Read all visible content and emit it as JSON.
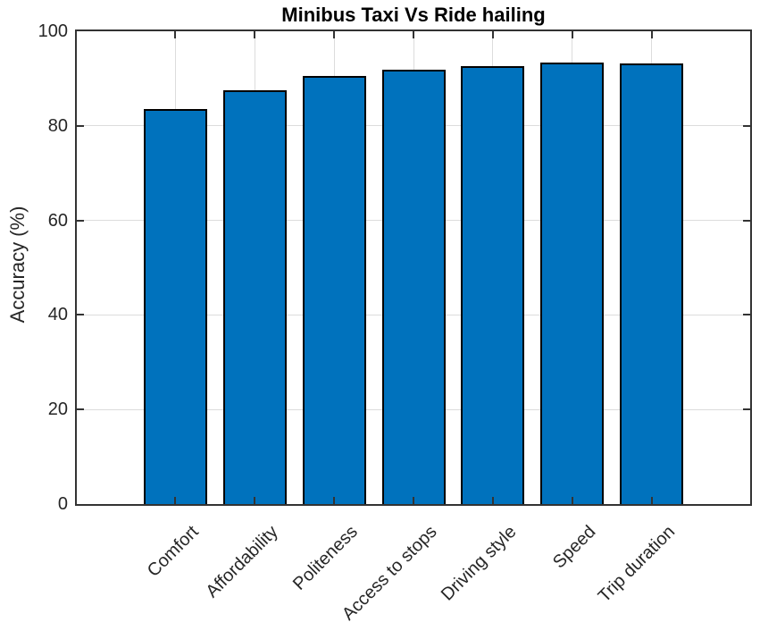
{
  "chart_data": {
    "type": "bar",
    "title": "Minibus Taxi Vs Ride hailing",
    "ylabel": "Accuracy (%)",
    "xlabel": "",
    "categories": [
      "Comfort",
      "Affordability",
      "Politeness",
      "Access to stops",
      "Driving style",
      "Speed",
      "Trip duration"
    ],
    "values": [
      83.5,
      87.6,
      90.6,
      91.9,
      92.7,
      93.3,
      93.2
    ],
    "ylim": [
      0,
      100
    ],
    "yticks": [
      0,
      20,
      40,
      60,
      80,
      100
    ],
    "x_tick_angle": 45,
    "grid": true,
    "legend": "none",
    "bar_color": "#0072BD",
    "bar_edge_color": "#000000",
    "grid_color": "#dcdcdc",
    "axis_color": "#333333",
    "tick_color": "#333333",
    "text_color": "#262626",
    "title_color": "#000000"
  }
}
